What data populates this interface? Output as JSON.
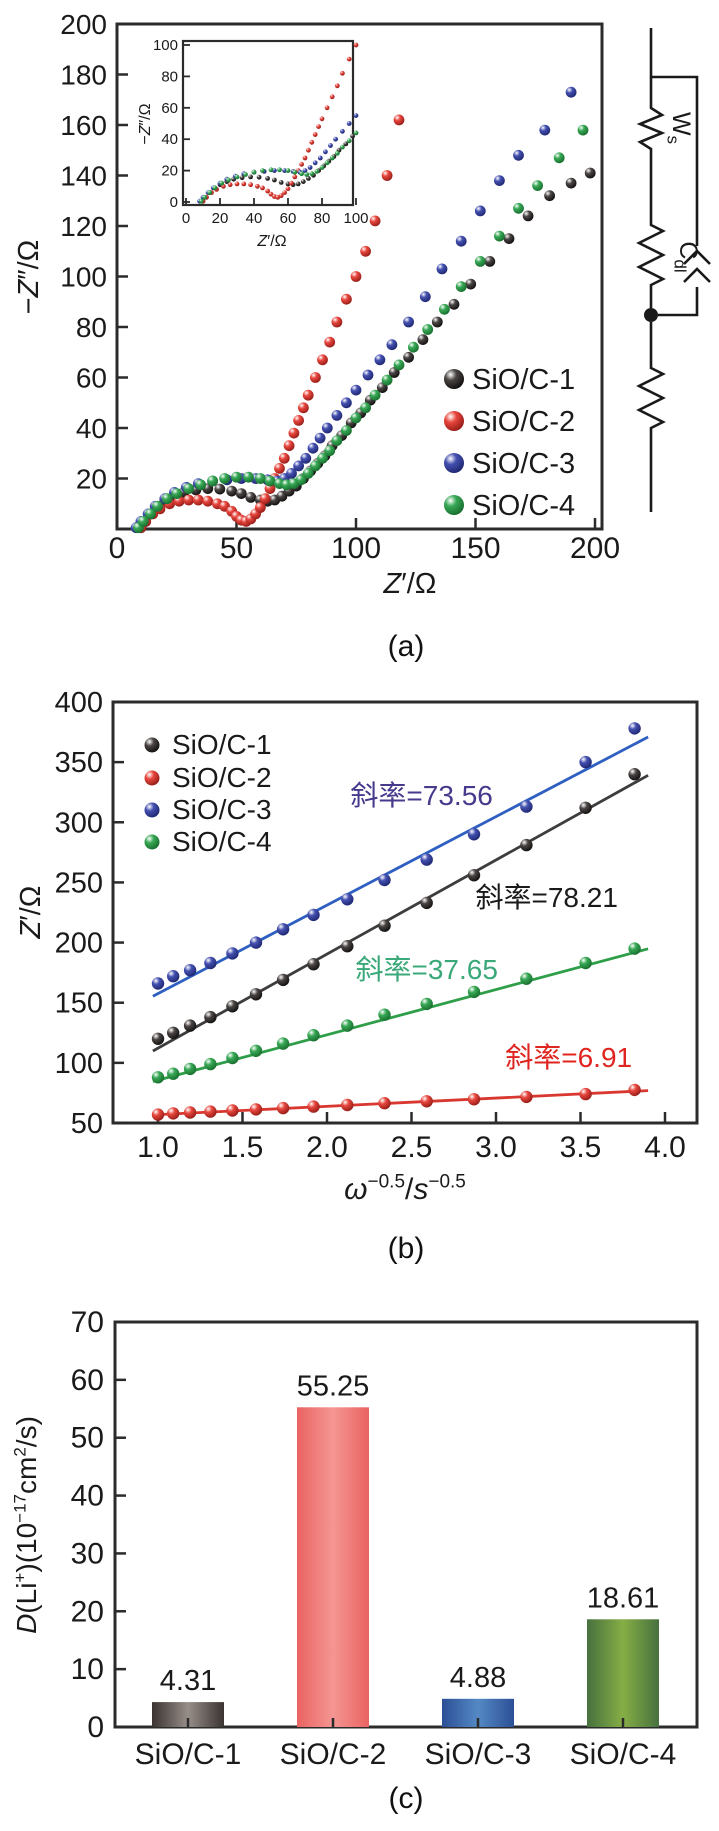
{
  "captions": {
    "a": "(a)",
    "b": "(b)",
    "c": "(c)"
  },
  "palette": {
    "SiO/C-1": {
      "main": "#4a4543",
      "edge": "#000000",
      "line": "#3d3d3d"
    },
    "SiO/C-2": {
      "main": "#e8473e",
      "edge": "#7e100c",
      "line": "#d93830"
    },
    "SiO/C-3": {
      "main": "#4450b0",
      "edge": "#141b5e",
      "line": "#2f5fc0"
    },
    "SiO/C-4": {
      "main": "#37a855",
      "edge": "#0f5c22",
      "line": "#2f9e49"
    }
  },
  "chart_data": [
    {
      "id": "a",
      "type": "scatter",
      "title": "Nyquist electrochemical impedance plot",
      "xlabel_parts": [
        {
          "t": "Z",
          "i": 1
        },
        {
          "t": "′"
        },
        {
          "t": "/Ω"
        }
      ],
      "ylabel_parts": [
        {
          "t": "−"
        },
        {
          "t": "Z",
          "i": 1
        },
        {
          "t": "″"
        },
        {
          "t": "/Ω"
        }
      ],
      "xlim": [
        0,
        200
      ],
      "ylim": [
        0,
        200
      ],
      "x_ticks": [
        "0",
        "50",
        "100",
        "150",
        "200"
      ],
      "y_ticks": [
        "20",
        "40",
        "60",
        "80",
        "100",
        "120",
        "140",
        "160",
        "180",
        "200"
      ],
      "legend": [
        "SiO/C-1",
        "SiO/C-2",
        "SiO/C-3",
        "SiO/C-4"
      ],
      "series": [
        {
          "name": "SiO/C-1",
          "points": [
            [
              10,
              0.5
            ],
            [
              12,
              3
            ],
            [
              14,
              6
            ],
            [
              17,
              9
            ],
            [
              20,
              11
            ],
            [
              24,
              13
            ],
            [
              28,
              14.5
            ],
            [
              33,
              15.5
            ],
            [
              38,
              16
            ],
            [
              43,
              15.8
            ],
            [
              48,
              15
            ],
            [
              52,
              14
            ],
            [
              56,
              12.5
            ],
            [
              60,
              11.5
            ],
            [
              63,
              11
            ],
            [
              66,
              11.5
            ],
            [
              69,
              13
            ],
            [
              72,
              15
            ],
            [
              75,
              17
            ],
            [
              78,
              20
            ],
            [
              81,
              23
            ],
            [
              84,
              26
            ],
            [
              87,
              29
            ],
            [
              90,
              33
            ],
            [
              94,
              37
            ],
            [
              98,
              42
            ],
            [
              102,
              46
            ],
            [
              106,
              51
            ],
            [
              111,
              56
            ],
            [
              116,
              62
            ],
            [
              122,
              68
            ],
            [
              128,
              75
            ],
            [
              134,
              82
            ],
            [
              141,
              89
            ],
            [
              148,
              97
            ],
            [
              156,
              106
            ],
            [
              164,
              115
            ],
            [
              172,
              124
            ],
            [
              181,
              132
            ],
            [
              190,
              137
            ],
            [
              198,
              141
            ]
          ]
        },
        {
          "name": "SiO/C-2",
          "points": [
            [
              10,
              0.5
            ],
            [
              12,
              3
            ],
            [
              15,
              6
            ],
            [
              18,
              8
            ],
            [
              22,
              10
            ],
            [
              26,
              11
            ],
            [
              30,
              11.5
            ],
            [
              34,
              11.5
            ],
            [
              38,
              11
            ],
            [
              42,
              10
            ],
            [
              45,
              9
            ],
            [
              48,
              7
            ],
            [
              50,
              5
            ],
            [
              52,
              3.5
            ],
            [
              54,
              3
            ],
            [
              56,
              4
            ],
            [
              58,
              6
            ],
            [
              60,
              8.5
            ],
            [
              62,
              12
            ],
            [
              64,
              16
            ],
            [
              66,
              20
            ],
            [
              68,
              24
            ],
            [
              70,
              28
            ],
            [
              72,
              33
            ],
            [
              74,
              38
            ],
            [
              76,
              43
            ],
            [
              78,
              48
            ],
            [
              80,
              53
            ],
            [
              83,
              60
            ],
            [
              86,
              67
            ],
            [
              89,
              74
            ],
            [
              92,
              82
            ],
            [
              96,
              91
            ],
            [
              100,
              100
            ],
            [
              104,
              110
            ],
            [
              108,
              122
            ],
            [
              113,
              140
            ],
            [
              118,
              162
            ]
          ]
        },
        {
          "name": "SiO/C-3",
          "points": [
            [
              8,
              0.5
            ],
            [
              10,
              3
            ],
            [
              13,
              6
            ],
            [
              16,
              9
            ],
            [
              20,
              12
            ],
            [
              24,
              14.5
            ],
            [
              29,
              16.5
            ],
            [
              34,
              18
            ],
            [
              40,
              19
            ],
            [
              46,
              19.5
            ],
            [
              52,
              20
            ],
            [
              58,
              20
            ],
            [
              63,
              19.5
            ],
            [
              67,
              19
            ],
            [
              70,
              20
            ],
            [
              73,
              22
            ],
            [
              76,
              25
            ],
            [
              79,
              28
            ],
            [
              82,
              32
            ],
            [
              85,
              36
            ],
            [
              88,
              40
            ],
            [
              92,
              45
            ],
            [
              96,
              50
            ],
            [
              100,
              55
            ],
            [
              105,
              61
            ],
            [
              110,
              67
            ],
            [
              115,
              73
            ],
            [
              122,
              82
            ],
            [
              129,
              92
            ],
            [
              136,
              103
            ],
            [
              144,
              114
            ],
            [
              152,
              126
            ],
            [
              160,
              138
            ],
            [
              168,
              148
            ],
            [
              179,
              158
            ],
            [
              190,
              173
            ]
          ]
        },
        {
          "name": "SiO/C-4",
          "points": [
            [
              9,
              0.5
            ],
            [
              11,
              3
            ],
            [
              14,
              6
            ],
            [
              17,
              9
            ],
            [
              21,
              12
            ],
            [
              25,
              14
            ],
            [
              30,
              16
            ],
            [
              35,
              17.5
            ],
            [
              40,
              19
            ],
            [
              45,
              20
            ],
            [
              50,
              20.5
            ],
            [
              55,
              20.5
            ],
            [
              60,
              20
            ],
            [
              64,
              19
            ],
            [
              68,
              18
            ],
            [
              71,
              17.5
            ],
            [
              74,
              18
            ],
            [
              77,
              19.5
            ],
            [
              80,
              22
            ],
            [
              83,
              25
            ],
            [
              86,
              28
            ],
            [
              89,
              31
            ],
            [
              92,
              35
            ],
            [
              96,
              39
            ],
            [
              100,
              44
            ],
            [
              104,
              48
            ],
            [
              108,
              53
            ],
            [
              113,
              59
            ],
            [
              118,
              65
            ],
            [
              124,
              72
            ],
            [
              130,
              79
            ],
            [
              137,
              87
            ],
            [
              144,
              96
            ],
            [
              152,
              106
            ],
            [
              160,
              116
            ],
            [
              168,
              127
            ],
            [
              176,
              136
            ],
            [
              185,
              147
            ],
            [
              195,
              158
            ]
          ]
        }
      ],
      "inset": {
        "xlim": [
          0,
          100
        ],
        "ylim": [
          0,
          100
        ],
        "x_ticks": [
          "0",
          "20",
          "40",
          "60",
          "80",
          "100"
        ],
        "y_ticks": [
          "0",
          "20",
          "40",
          "60",
          "80",
          "100"
        ],
        "xlabel_parts": [
          {
            "t": "Z",
            "i": 1
          },
          {
            "t": "′"
          },
          {
            "t": "/Ω"
          }
        ],
        "ylabel_parts": [
          {
            "t": "−"
          },
          {
            "t": "Z",
            "i": 1
          },
          {
            "t": "″"
          },
          {
            "t": "/Ω"
          }
        ]
      },
      "circuit": {
        "description": "Randles equivalent circuit: series resistor, parallel Cdl capacitor with charge-transfer resistor, Warburg element Ws",
        "warburg_label": [
          {
            "t": "W"
          },
          {
            "t": "s",
            "sub": 1
          }
        ],
        "capacitor_label": [
          {
            "t": "C"
          },
          {
            "t": "dl",
            "sub": 1
          }
        ]
      }
    },
    {
      "id": "b",
      "type": "scatter-line",
      "title": "Z' vs omega^-0.5 Warburg fits",
      "xlabel_parts": [
        {
          "t": "ω",
          "i": 1
        },
        {
          "t": "−0.5",
          "sup": 1
        },
        {
          "t": "/"
        },
        {
          "t": "s",
          "i": 1
        },
        {
          "t": "−0.5",
          "sup": 1
        }
      ],
      "ylabel_parts": [
        {
          "t": "Z",
          "i": 1
        },
        {
          "t": "′"
        },
        {
          "t": "/Ω"
        }
      ],
      "xlim": [
        0.72,
        4.18
      ],
      "ylim": [
        50,
        400
      ],
      "x_ticks": [
        "1.0",
        "1.5",
        "2.0",
        "2.5",
        "3.0",
        "3.5",
        "4.0"
      ],
      "y_ticks": [
        "50",
        "100",
        "150",
        "200",
        "250",
        "300",
        "350",
        "400"
      ],
      "legend": [
        "SiO/C-1",
        "SiO/C-2",
        "SiO/C-3",
        "SiO/C-4"
      ],
      "x": [
        1.0,
        1.09,
        1.19,
        1.31,
        1.44,
        1.58,
        1.74,
        1.92,
        2.12,
        2.34,
        2.59,
        2.87,
        3.18,
        3.53,
        3.82
      ],
      "series": [
        {
          "name": "SiO/C-1",
          "values": [
            120,
            125,
            131,
            138,
            147,
            157,
            169,
            182,
            197,
            214,
            233,
            256,
            281,
            312,
            340
          ],
          "fit": {
            "slope": 78.21,
            "intercept": 34
          }
        },
        {
          "name": "SiO/C-2",
          "values": [
            57,
            58,
            58.7,
            59.5,
            60.4,
            61.3,
            62.4,
            63.6,
            65,
            66.5,
            68,
            69.7,
            71.7,
            74,
            77.5
          ],
          "fit": {
            "slope": 6.91,
            "intercept": 50
          }
        },
        {
          "name": "SiO/C-3",
          "values": [
            166,
            172,
            177,
            183,
            191,
            200,
            211,
            223,
            236,
            252,
            269,
            290,
            313,
            350,
            378
          ],
          "fit": {
            "slope": 73.56,
            "intercept": 84
          }
        },
        {
          "name": "SiO/C-4",
          "values": [
            88,
            91,
            95,
            99,
            104,
            110,
            116,
            123,
            131,
            140,
            149,
            159,
            170,
            183,
            195
          ],
          "fit": {
            "slope": 37.65,
            "intercept": 48
          }
        }
      ],
      "annotations": [
        {
          "text": "斜率=73.56",
          "color": "#453a8c",
          "ax": 2.56,
          "ay": 322
        },
        {
          "text": "斜率=78.21",
          "color": "#1a1a1a",
          "ax": 3.3,
          "ay": 237
        },
        {
          "text": "斜率=37.65",
          "color": "#3aa878",
          "ax": 2.59,
          "ay": 177
        },
        {
          "text": "斜率=6.91",
          "color": "#e0241f",
          "ax": 3.43,
          "ay": 104
        }
      ]
    },
    {
      "id": "c",
      "type": "bar",
      "title": "Lithium-ion diffusion coefficients",
      "ylabel_parts": [
        {
          "t": "D",
          "i": 1
        },
        {
          "t": "(Li"
        },
        {
          "t": "+",
          "sup": 1
        },
        {
          "t": ")(10"
        },
        {
          "t": "−17",
          "sup": 1
        },
        {
          "t": "cm"
        },
        {
          "t": "2",
          "sup": 1
        },
        {
          "t": "/s)"
        }
      ],
      "categories": [
        "SiO/C-1",
        "SiO/C-2",
        "SiO/C-3",
        "SiO/C-4"
      ],
      "values": [
        4.31,
        55.25,
        4.88,
        18.61
      ],
      "value_labels": [
        "4.31",
        "55.25",
        "4.88",
        "18.61"
      ],
      "ylim": [
        0,
        70
      ],
      "y_ticks": [
        "0",
        "10",
        "20",
        "30",
        "40",
        "50",
        "60",
        "70"
      ],
      "bar_colors": [
        {
          "edge": "#3a3331",
          "mid": "#978e89"
        },
        {
          "edge": "#ea6361",
          "mid": "#f49693"
        },
        {
          "edge": "#2c4f96",
          "mid": "#5489c5"
        },
        {
          "edge": "#47713f",
          "mid": "#86ae45"
        }
      ]
    }
  ]
}
